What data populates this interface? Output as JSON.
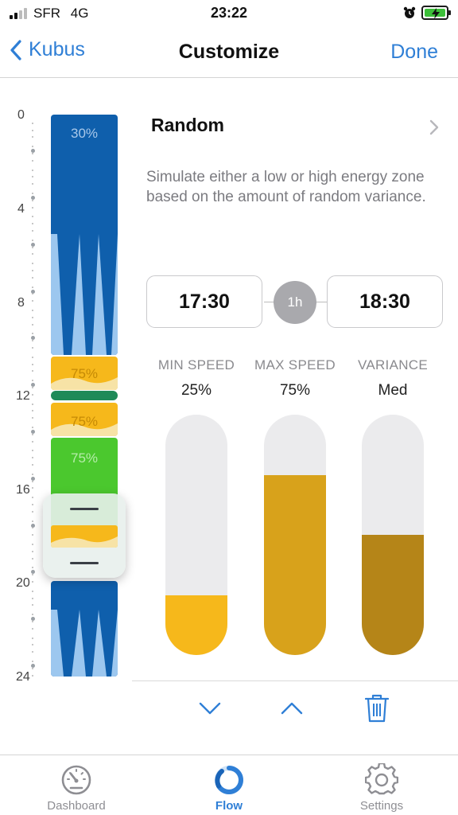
{
  "status_bar": {
    "carrier": "SFR",
    "network": "4G",
    "time": "23:22"
  },
  "nav": {
    "back_label": "Kubus",
    "title": "Customize",
    "done_label": "Done"
  },
  "ruler": {
    "labels": [
      "0",
      "4",
      "8",
      "12",
      "16",
      "20",
      "24"
    ]
  },
  "timeline": {
    "segments": [
      {
        "label": "30%",
        "color": "#0f5fac"
      },
      {
        "label": "75%",
        "color": "#f6b81b"
      },
      {
        "label": "75%",
        "color": "#f6b81b"
      },
      {
        "label": "75%",
        "color": "#4bc82e"
      }
    ]
  },
  "mode": {
    "title": "Random",
    "description": "Simulate either a low or high energy zone based on the amount of random variance."
  },
  "schedule": {
    "start": "17:30",
    "duration": "1h",
    "end": "18:30"
  },
  "controls": [
    {
      "label": "MIN SPEED",
      "value": "25%",
      "level": 0.25,
      "color": "#f6b81b"
    },
    {
      "label": "MAX SPEED",
      "value": "75%",
      "level": 0.75,
      "color": "#d8a21b"
    },
    {
      "label": "VARIANCE",
      "value": "Med",
      "level": 0.5,
      "color": "#b58518"
    }
  ],
  "tabs": [
    {
      "label": "Dashboard",
      "icon": "dashboard-gauge-icon"
    },
    {
      "label": "Flow",
      "icon": "flow-ring-icon"
    },
    {
      "label": "Settings",
      "icon": "gear-icon"
    }
  ]
}
